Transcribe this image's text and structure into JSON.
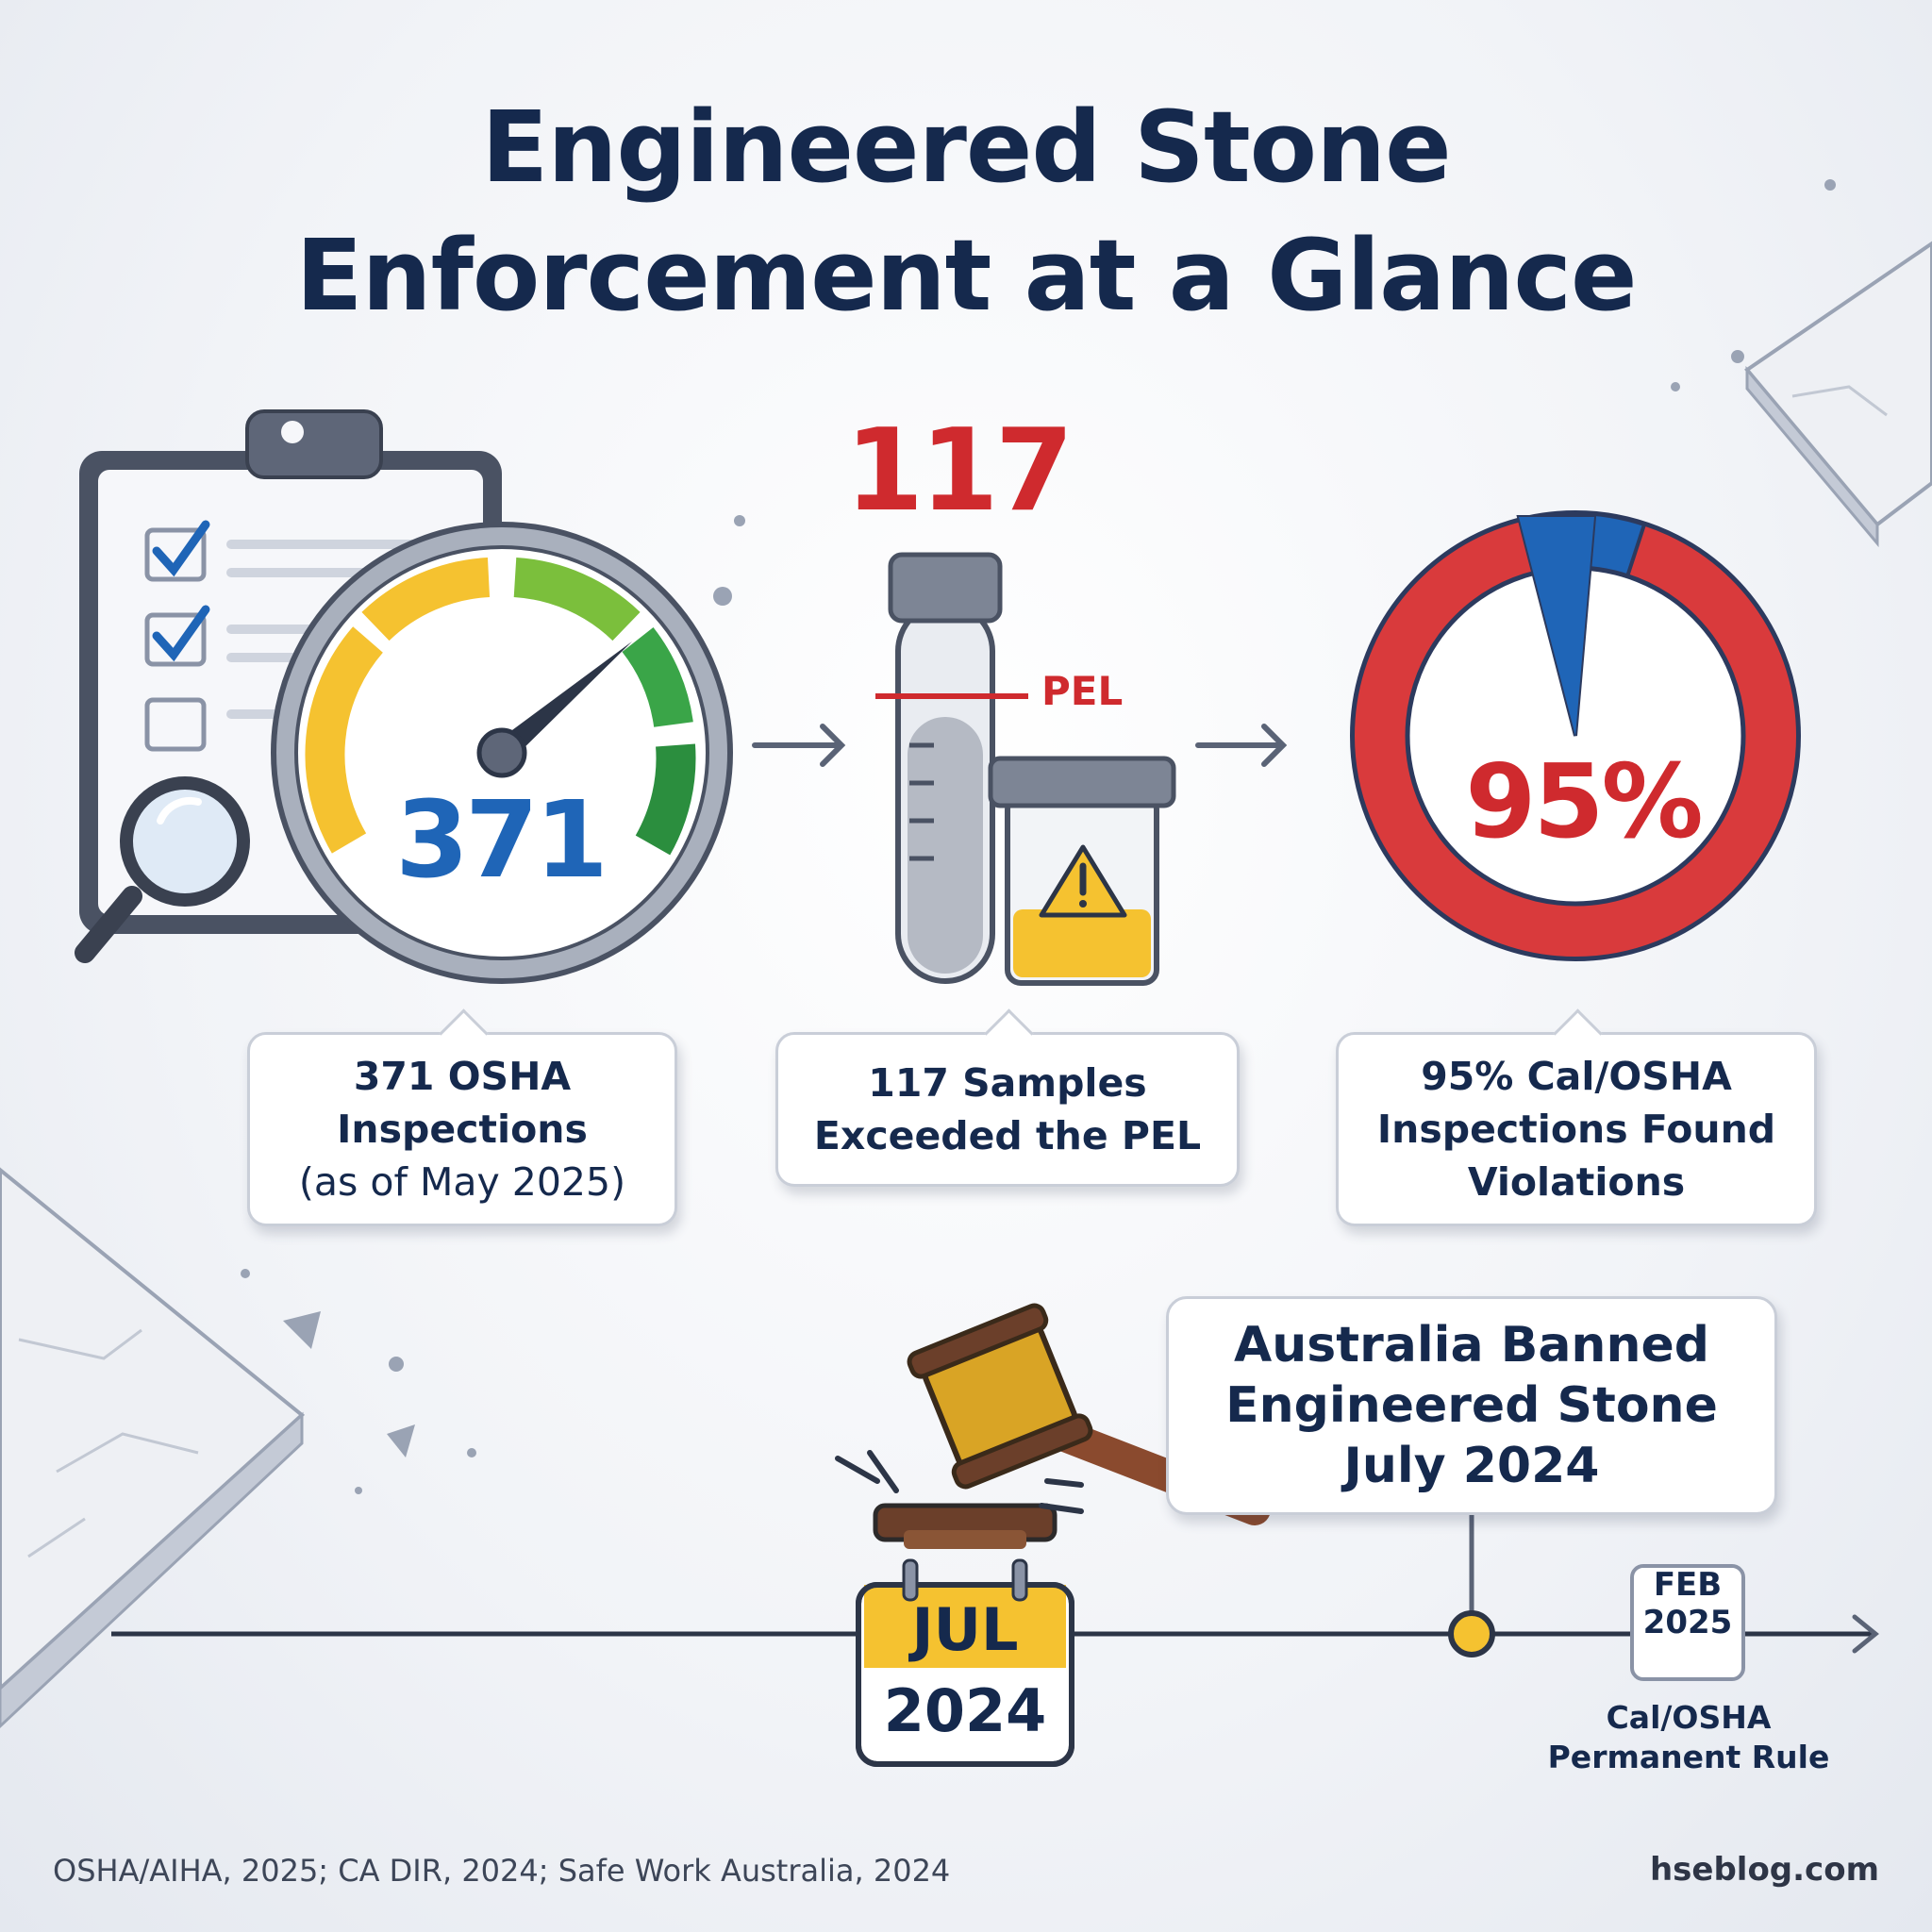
{
  "title": {
    "line1": "Engineered Stone",
    "line2": "Enforcement at a Glance"
  },
  "stats": {
    "inspections": {
      "gauge_value": "371",
      "label_line1": "371 OSHA",
      "label_line2": "Inspections",
      "label_line3": "(as of May 2025)",
      "icon": "clipboard-checklist-gauge"
    },
    "samples": {
      "headline": "117",
      "pel_marker": "PEL",
      "label_line1": "117 Samples",
      "label_line2": "Exceeded the PEL",
      "icon": "test-tube-sample-cup"
    },
    "violations": {
      "percent_text": "95%",
      "percent_value": 95,
      "label_line1": "95% Cal/OSHA",
      "label_line2": "Inspections Found",
      "label_line3": "Violations",
      "icon": "donut-chart"
    }
  },
  "timeline": {
    "calendar_month": "JUL",
    "calendar_year": "2024",
    "australia_line1": "Australia Banned",
    "australia_line2": "Engineered Stone",
    "australia_line3": "July 2024",
    "feb_month": "FEB",
    "feb_year": "2025",
    "feb_label_line1": "Cal/OSHA",
    "feb_label_line2": "Permanent Rule",
    "icon": "gavel-icon"
  },
  "footer": {
    "sources": "OSHA/AIHA, 2025; CA DIR, 2024; Safe Work Australia, 2024",
    "site": "hseblog.com"
  },
  "colors": {
    "navy": "#15294d",
    "red": "#cf2a2e",
    "blue": "#1f65b7",
    "yellow": "#f5c230",
    "green": "#3aa548"
  }
}
